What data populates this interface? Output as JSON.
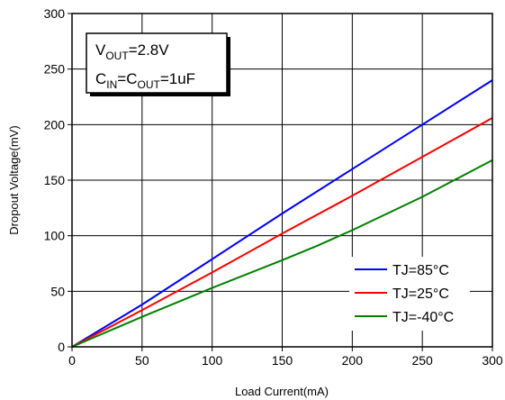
{
  "chart_data": {
    "type": "line",
    "title": "",
    "xlabel": "Load Current(mA)",
    "ylabel": "Dropout Voltage(mV)",
    "xlim": [
      0,
      300
    ],
    "ylim": [
      0,
      300
    ],
    "xticks": [
      "0",
      "50",
      "100",
      "150",
      "200",
      "250",
      "300"
    ],
    "yticks": [
      "0",
      "50",
      "100",
      "150",
      "200",
      "250",
      "300"
    ],
    "grid": true,
    "legend_position": "bottom-right",
    "annotation": {
      "line1": {
        "main": "V",
        "sub": "OUT",
        "rest": "=2.8V"
      },
      "line2": {
        "main1": "C",
        "sub1": "IN",
        "main2": "=C",
        "sub2": "OUT",
        "rest": "=1uF"
      }
    },
    "series": [
      {
        "name": "TJ=85°C",
        "color": "#0000ff",
        "x": [
          0,
          50,
          100,
          150,
          200,
          250,
          300
        ],
        "y": [
          0,
          38,
          79,
          120,
          160,
          200,
          240
        ]
      },
      {
        "name": "TJ=25°C",
        "color": "#ff0000",
        "x": [
          0,
          50,
          100,
          150,
          200,
          250,
          300
        ],
        "y": [
          0,
          33,
          67,
          102,
          136,
          171,
          206
        ]
      },
      {
        "name": "TJ=-40°C",
        "color": "#008000",
        "x": [
          0,
          50,
          100,
          150,
          175,
          200,
          250,
          300
        ],
        "y": [
          0,
          27,
          53,
          78,
          91,
          105,
          135,
          168
        ]
      }
    ]
  }
}
